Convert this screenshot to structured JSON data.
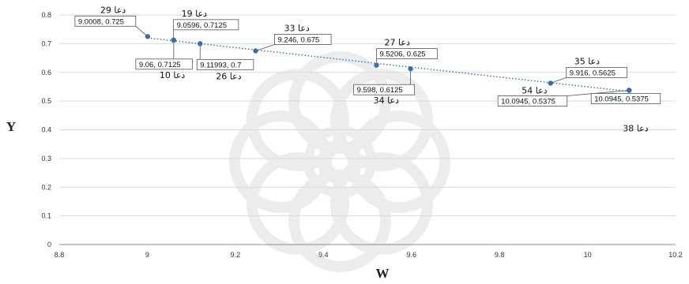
{
  "chart_data": {
    "type": "scatter",
    "xlabel": "W",
    "ylabel": "Y",
    "xlim": [
      8.8,
      10.2
    ],
    "ylim": [
      0,
      0.8
    ],
    "x_ticks": [
      "8.8",
      "9",
      "9.2",
      "9.4",
      "9.6",
      "9.8",
      "10",
      "10.2"
    ],
    "y_ticks": [
      "0",
      "0.1",
      "0.2",
      "0.3",
      "0.4",
      "0.5",
      "0.6",
      "0.7",
      "0.8"
    ],
    "grid": "horizontal",
    "trendline": "linear, dotted",
    "marker_color": "#3a6ea5",
    "points": [
      {
        "name": "دعا 29",
        "x": 9.0008,
        "y": 0.725,
        "label": "9.0008, 0.725"
      },
      {
        "name": "دعا 19",
        "x": 9.0596,
        "y": 0.7125,
        "label": "9.0596, 0.7125"
      },
      {
        "name": "دعا 10",
        "x": 9.06,
        "y": 0.7125,
        "label": "9.06, 0.7125"
      },
      {
        "name": "دعا 26",
        "x": 9.11993,
        "y": 0.7,
        "label": "9.11993, 0.7"
      },
      {
        "name": "دعا 33",
        "x": 9.246,
        "y": 0.675,
        "label": "9.246, 0.675"
      },
      {
        "name": "دعا 27",
        "x": 9.5206,
        "y": 0.625,
        "label": "9.5206, 0.625"
      },
      {
        "name": "دعا 34",
        "x": 9.598,
        "y": 0.6125,
        "label": "9.598, 0.6125"
      },
      {
        "name": "دعا 35",
        "x": 9.916,
        "y": 0.5625,
        "label": "9.916, 0.5625"
      },
      {
        "name": "دعا 54",
        "x": 10.0945,
        "y": 0.5375,
        "label": "10.0945, 0.5375"
      },
      {
        "name": "دعا 38",
        "x": 10.0945,
        "y": 0.5375,
        "label": "10.0945, 0.5375"
      }
    ]
  }
}
